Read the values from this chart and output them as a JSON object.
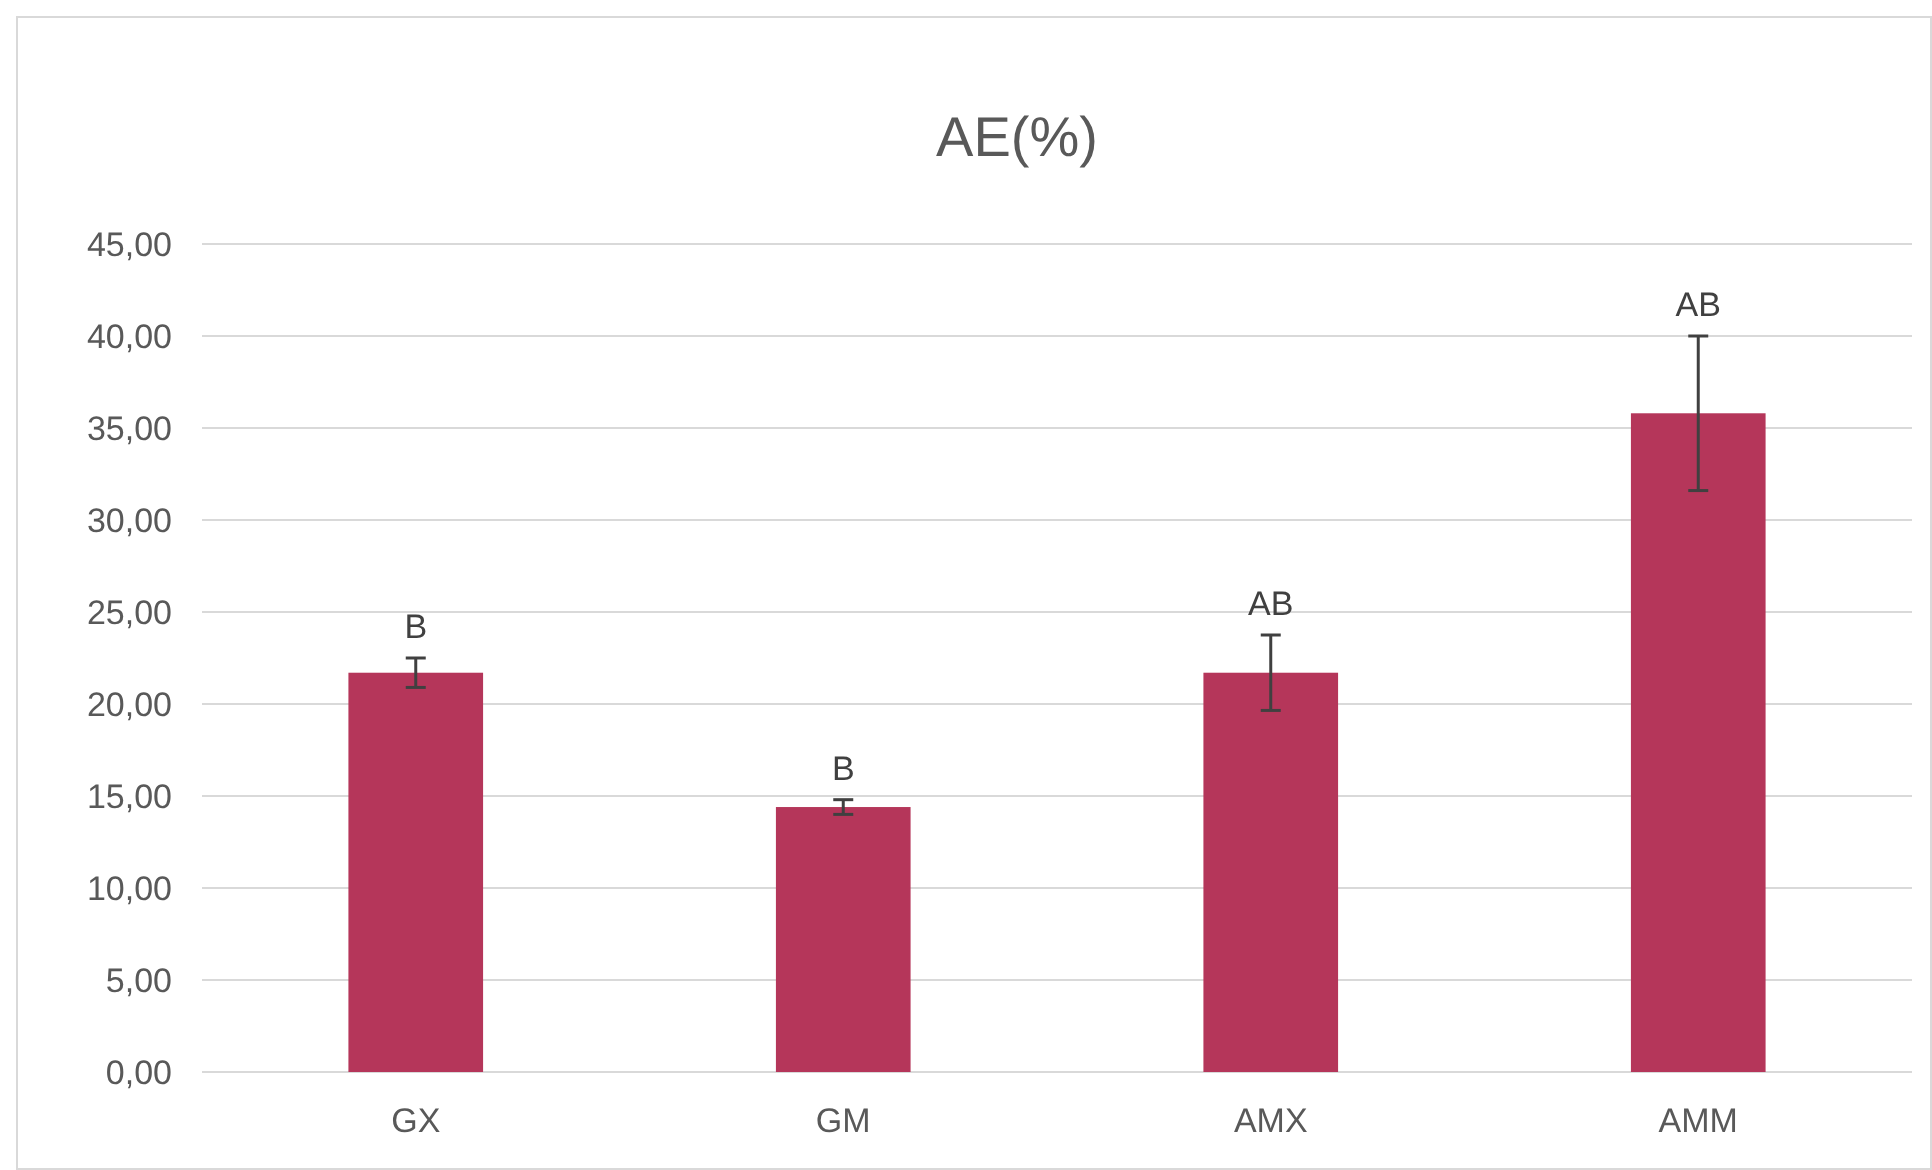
{
  "chart_data": {
    "type": "bar",
    "title": "AE(%)",
    "categories": [
      "GX",
      "GM",
      "AMX",
      "AMM"
    ],
    "values": [
      21.7,
      14.4,
      21.7,
      35.8
    ],
    "errors": [
      0.8,
      0.4,
      2.05,
      4.2
    ],
    "color": "#b5365a",
    "ylim": [
      0,
      45
    ],
    "yticks": [
      {
        "value": 0,
        "label": "0,00"
      },
      {
        "value": 5,
        "label": "5,00"
      },
      {
        "value": 10,
        "label": "10,00"
      },
      {
        "value": 15,
        "label": "15,00"
      },
      {
        "value": 20,
        "label": "20,00"
      },
      {
        "value": 25,
        "label": "25,00"
      },
      {
        "value": 30,
        "label": "30,00"
      },
      {
        "value": 35,
        "label": "35,00"
      },
      {
        "value": 40,
        "label": "40,00"
      },
      {
        "value": 45,
        "label": "45,00"
      }
    ],
    "grid": "y",
    "annotations": [
      {
        "text": "B",
        "x": "GX",
        "y": 22.5
      },
      {
        "text": "B",
        "x": "GM",
        "y": 14.8
      },
      {
        "text": "AB",
        "x": "AMX",
        "y": 23.75
      },
      {
        "text": "AB",
        "x": "AMM",
        "y": 40.0
      }
    ]
  }
}
